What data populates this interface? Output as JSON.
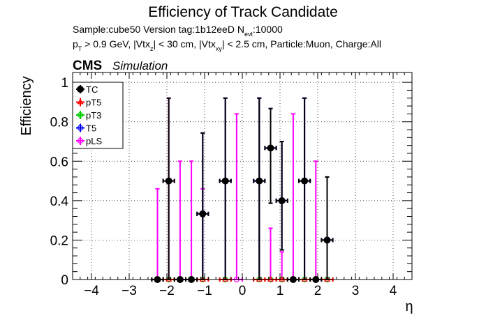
{
  "chart_data": {
    "type": "scatter",
    "title": "Efficiency of Track Candidate",
    "info_line1_parts": [
      "Sample:cube50   Version tag:1b12eeD  N",
      "evt",
      ":10000"
    ],
    "info_line2_parts": [
      "p",
      "T",
      " > 0.9 GeV, |Vtx",
      "z",
      "| < 30 cm, |Vtx",
      "xy",
      "| < 2.5 cm, Particle:Muon, Charge:All"
    ],
    "cms_label": "CMS",
    "simulation_label": "Simulation",
    "xlabel": "η",
    "ylabel": "Efficiency",
    "xlim": [
      -4.5,
      4.5
    ],
    "ylim": [
      0,
      1.05
    ],
    "x_ticks": [
      -4,
      -3,
      -2,
      -1,
      0,
      1,
      2,
      3,
      4
    ],
    "y_ticks": [
      0,
      0.2,
      0.4,
      0.6,
      0.8,
      1
    ],
    "grid": true,
    "legend_position": "top-left",
    "x_error_half_width": 0.15,
    "series": [
      {
        "name": "TC",
        "color": "#000000",
        "marker": "filled-circle",
        "points": [
          {
            "x": -2.25,
            "y": 0,
            "err_up": 0,
            "err_down": 0
          },
          {
            "x": -1.95,
            "y": 0.5,
            "err_up": 0.42,
            "err_down": 0.5
          },
          {
            "x": -1.65,
            "y": 0,
            "err_up": 0,
            "err_down": 0
          },
          {
            "x": -1.35,
            "y": 0,
            "err_up": 0,
            "err_down": 0
          },
          {
            "x": -1.05,
            "y": 0.333,
            "err_up": 0.41,
            "err_down": 0.333
          },
          {
            "x": -0.45,
            "y": 0.5,
            "err_up": 0.42,
            "err_down": 0.5
          },
          {
            "x": 0.45,
            "y": 0.5,
            "err_up": 0.42,
            "err_down": 0.5
          },
          {
            "x": 0.75,
            "y": 0.667,
            "err_up": 0.2,
            "err_down": 0.28
          },
          {
            "x": 1.05,
            "y": 0.4,
            "err_up": 0.3,
            "err_down": 0.25
          },
          {
            "x": 1.35,
            "y": 0,
            "err_up": 0,
            "err_down": 0
          },
          {
            "x": 1.65,
            "y": 0.5,
            "err_up": 0.42,
            "err_down": 0.5
          },
          {
            "x": 1.95,
            "y": 0,
            "err_up": 0,
            "err_down": 0
          },
          {
            "x": 2.25,
            "y": 0.2,
            "err_up": 0.32,
            "err_down": 0.2
          }
        ]
      },
      {
        "name": "pT5",
        "color": "#ff0000",
        "marker": "open-triangle",
        "points": [
          {
            "x": -2.25,
            "y": 0,
            "err_up": 0,
            "err_down": 0
          },
          {
            "x": -1.95,
            "y": 0,
            "err_up": 0,
            "err_down": 0
          },
          {
            "x": -1.65,
            "y": 0,
            "err_up": 0,
            "err_down": 0
          },
          {
            "x": -1.35,
            "y": 0,
            "err_up": 0,
            "err_down": 0
          },
          {
            "x": -1.05,
            "y": 0,
            "err_up": 0,
            "err_down": 0
          },
          {
            "x": -0.45,
            "y": 0,
            "err_up": 0,
            "err_down": 0
          },
          {
            "x": 0.45,
            "y": 0,
            "err_up": 0,
            "err_down": 0
          },
          {
            "x": 0.75,
            "y": 0,
            "err_up": 0,
            "err_down": 0
          },
          {
            "x": 1.05,
            "y": 0,
            "err_up": 0,
            "err_down": 0
          },
          {
            "x": 1.35,
            "y": 0,
            "err_up": 0,
            "err_down": 0
          },
          {
            "x": 1.65,
            "y": 0,
            "err_up": 0,
            "err_down": 0
          },
          {
            "x": 1.95,
            "y": 0,
            "err_up": 0,
            "err_down": 0
          },
          {
            "x": 2.25,
            "y": 0,
            "err_up": 0,
            "err_down": 0
          }
        ]
      },
      {
        "name": "pT3",
        "color": "#00cc00",
        "marker": "open-circle",
        "points": [
          {
            "x": -2.25,
            "y": 0,
            "err_up": 0,
            "err_down": 0
          },
          {
            "x": -1.95,
            "y": 0,
            "err_up": 0,
            "err_down": 0
          },
          {
            "x": -1.65,
            "y": 0,
            "err_up": 0,
            "err_down": 0
          },
          {
            "x": -1.35,
            "y": 0,
            "err_up": 0,
            "err_down": 0
          },
          {
            "x": -1.05,
            "y": 0,
            "err_up": 0,
            "err_down": 0
          },
          {
            "x": -0.45,
            "y": 0,
            "err_up": 0,
            "err_down": 0
          },
          {
            "x": 0.45,
            "y": 0,
            "err_up": 0,
            "err_down": 0
          },
          {
            "x": 0.75,
            "y": 0,
            "err_up": 0,
            "err_down": 0
          },
          {
            "x": 1.05,
            "y": 0,
            "err_up": 0,
            "err_down": 0
          },
          {
            "x": 1.35,
            "y": 0,
            "err_up": 0,
            "err_down": 0
          },
          {
            "x": 1.65,
            "y": 0,
            "err_up": 0,
            "err_down": 0
          },
          {
            "x": 1.95,
            "y": 0,
            "err_up": 0,
            "err_down": 0
          },
          {
            "x": 2.25,
            "y": 0,
            "err_up": 0,
            "err_down": 0
          }
        ]
      },
      {
        "name": "T5",
        "color": "#0000ff",
        "marker": "open-circle",
        "points": [
          {
            "x": -2.25,
            "y": 0,
            "err_up": 0,
            "err_down": 0
          },
          {
            "x": -1.95,
            "y": 0,
            "err_up": 0,
            "err_down": 0
          },
          {
            "x": -1.65,
            "y": 0,
            "err_up": 0,
            "err_down": 0
          },
          {
            "x": -1.35,
            "y": 0,
            "err_up": 0,
            "err_down": 0
          },
          {
            "x": -1.05,
            "y": 0.333,
            "err_up": 0.41,
            "err_down": 0.333
          },
          {
            "x": -0.45,
            "y": 0.5,
            "err_up": 0.42,
            "err_down": 0.5
          },
          {
            "x": 0.45,
            "y": 0.5,
            "err_up": 0.42,
            "err_down": 0.5
          },
          {
            "x": 0.75,
            "y": 0.667,
            "err_up": 0.2,
            "err_down": 0.28
          },
          {
            "x": 1.05,
            "y": 0.4,
            "err_up": 0.3,
            "err_down": 0.25
          },
          {
            "x": 1.35,
            "y": 0,
            "err_up": 0,
            "err_down": 0
          },
          {
            "x": 1.65,
            "y": 0.5,
            "err_up": 0.42,
            "err_down": 0.5
          },
          {
            "x": 1.95,
            "y": 0,
            "err_up": 0,
            "err_down": 0
          },
          {
            "x": 2.25,
            "y": 0.2,
            "err_up": 0.32,
            "err_down": 0.2
          }
        ]
      },
      {
        "name": "pLS",
        "color": "#ff00ff",
        "marker": "open-circle",
        "points": [
          {
            "x": -2.25,
            "y": 0,
            "err_up": 0.46,
            "err_down": 0
          },
          {
            "x": -1.95,
            "y": 0.5,
            "err_up": 0.42,
            "err_down": 0.5
          },
          {
            "x": -1.65,
            "y": 0,
            "err_up": 0.6,
            "err_down": 0
          },
          {
            "x": -1.35,
            "y": 0,
            "err_up": 0.6,
            "err_down": 0
          },
          {
            "x": -1.05,
            "y": 0,
            "err_up": 0.46,
            "err_down": 0
          },
          {
            "x": -0.15,
            "y": 0,
            "err_up": 0.84,
            "err_down": 0
          },
          {
            "x": 0.45,
            "y": 0.5,
            "err_up": 0.42,
            "err_down": 0.5
          },
          {
            "x": 0.75,
            "y": 0,
            "err_up": 0.26,
            "err_down": 0
          },
          {
            "x": 1.05,
            "y": 0,
            "err_up": 0.14,
            "err_down": 0
          },
          {
            "x": 1.35,
            "y": 0,
            "err_up": 0.84,
            "err_down": 0
          },
          {
            "x": 1.65,
            "y": 0.5,
            "err_up": 0.42,
            "err_down": 0.5
          },
          {
            "x": 1.95,
            "y": 0,
            "err_up": 0.6,
            "err_down": 0
          },
          {
            "x": 2.25,
            "y": 0,
            "err_up": 0,
            "err_down": 0
          }
        ]
      }
    ]
  }
}
